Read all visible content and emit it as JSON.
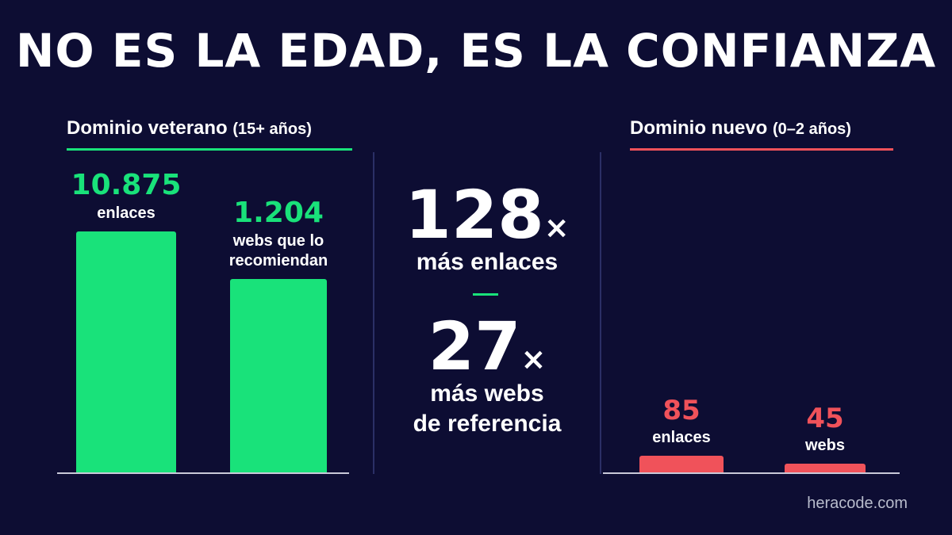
{
  "title": "NO ES LA EDAD, ES LA CONFIANZA",
  "colors": {
    "background": "#0d0d33",
    "veteran": "#19e27a",
    "new": "#f0525a",
    "divider": "#2b2f66"
  },
  "veteran_panel": {
    "label": "Dominio veterano",
    "sublabel": "(15+ años)"
  },
  "new_panel": {
    "label": "Dominio nuevo",
    "sublabel": "(0–2 años)"
  },
  "comparison": [
    {
      "value": "128",
      "symbol": "×",
      "caption": [
        "más enlaces"
      ]
    },
    {
      "value": "27",
      "symbol": "×",
      "caption": [
        "más webs",
        "de referencia"
      ]
    }
  ],
  "footer": "heracode.com",
  "chart_data": [
    {
      "type": "bar",
      "title": "Dominio veterano (15+ años)",
      "categories": [
        "enlaces",
        "webs que lo recomiendan"
      ],
      "values": [
        10875,
        1204
      ],
      "value_labels": [
        "10.875",
        "1.204"
      ],
      "caption_lines": [
        [
          "enlaces"
        ],
        [
          "webs que lo",
          "recomiendan"
        ]
      ],
      "ylim": [
        0,
        10875
      ],
      "note": "bars not drawn to a linear scale"
    },
    {
      "type": "bar",
      "title": "Dominio nuevo (0–2 años)",
      "categories": [
        "enlaces",
        "webs"
      ],
      "values": [
        85,
        45
      ],
      "value_labels": [
        "85",
        "45"
      ],
      "caption_lines": [
        [
          "enlaces"
        ],
        [
          "webs"
        ]
      ]
    }
  ]
}
